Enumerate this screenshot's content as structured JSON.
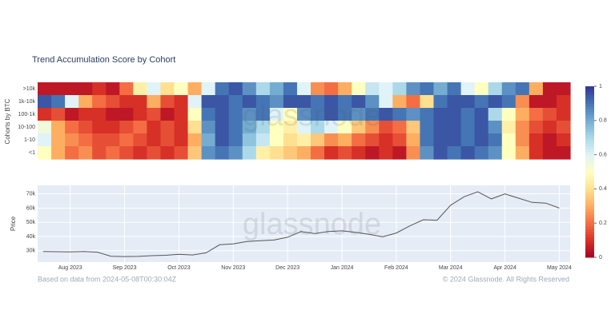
{
  "chart_data": [
    {
      "type": "heatmap",
      "title": "Trend Accumulation Score by Cohort",
      "y_label": "Cohorts by BTC",
      "watermark": "glassnode",
      "categories": [
        ">10k",
        "1k-10k",
        "100-1k",
        "10-100",
        "1-10",
        "<1"
      ],
      "values": [
        [
          0.05,
          0.05,
          0.05,
          0.05,
          0.1,
          0.05,
          0.2,
          0.45,
          0.6,
          0.4,
          0.5,
          0.3,
          0.6,
          0.9,
          0.95,
          0.85,
          0.7,
          0.8,
          0.9,
          0.6,
          0.25,
          0.2,
          0.3,
          0.5,
          0.65,
          0.6,
          0.7,
          0.85,
          0.9,
          0.8,
          0.9,
          0.6,
          0.5,
          0.7,
          0.85,
          0.9,
          0.3,
          0.05,
          0.05
        ],
        [
          0.95,
          0.9,
          0.6,
          0.3,
          0.2,
          0.15,
          0.1,
          0.1,
          0.3,
          0.15,
          0.1,
          0.6,
          0.95,
          0.95,
          0.9,
          0.95,
          0.9,
          0.85,
          0.95,
          0.95,
          0.9,
          0.95,
          0.9,
          0.95,
          0.85,
          0.6,
          0.3,
          0.2,
          0.4,
          0.9,
          0.95,
          0.95,
          0.9,
          0.95,
          0.9,
          0.25,
          0.05,
          0.05,
          0.1
        ],
        [
          0.1,
          0.15,
          0.05,
          0.1,
          0.1,
          0.05,
          0.05,
          0.1,
          0.15,
          0.05,
          0.1,
          0.5,
          0.9,
          0.95,
          0.9,
          0.85,
          0.9,
          0.6,
          0.5,
          0.85,
          0.9,
          0.95,
          0.9,
          0.85,
          0.9,
          0.95,
          0.9,
          0.85,
          0.9,
          0.95,
          0.95,
          0.9,
          0.95,
          0.7,
          0.5,
          0.3,
          0.2,
          0.15,
          0.1
        ],
        [
          0.55,
          0.3,
          0.2,
          0.15,
          0.1,
          0.1,
          0.15,
          0.2,
          0.1,
          0.15,
          0.1,
          0.4,
          0.85,
          0.95,
          0.9,
          0.8,
          0.7,
          0.5,
          0.45,
          0.6,
          0.7,
          0.6,
          0.5,
          0.35,
          0.25,
          0.15,
          0.2,
          0.35,
          0.9,
          0.95,
          0.95,
          0.9,
          0.95,
          0.85,
          0.45,
          0.25,
          0.15,
          0.1,
          0.15
        ],
        [
          0.6,
          0.3,
          0.25,
          0.2,
          0.15,
          0.15,
          0.2,
          0.15,
          0.1,
          0.15,
          0.1,
          0.3,
          0.8,
          0.95,
          0.9,
          0.75,
          0.65,
          0.5,
          0.4,
          0.45,
          0.35,
          0.25,
          0.3,
          0.2,
          0.15,
          0.1,
          0.15,
          0.3,
          0.9,
          0.95,
          0.95,
          0.9,
          0.95,
          0.9,
          0.5,
          0.25,
          0.1,
          0.05,
          0.1
        ],
        [
          0.5,
          0.3,
          0.2,
          0.25,
          0.15,
          0.2,
          0.15,
          0.1,
          0.15,
          0.1,
          0.15,
          0.35,
          0.85,
          0.9,
          0.85,
          0.7,
          0.45,
          0.4,
          0.35,
          0.3,
          0.2,
          0.1,
          0.15,
          0.1,
          0.05,
          0.1,
          0.05,
          0.25,
          0.85,
          0.95,
          0.9,
          0.95,
          0.9,
          0.85,
          0.5,
          0.3,
          0.1,
          0.05,
          0.05
        ]
      ],
      "zlim": [
        0,
        1
      ],
      "colorbar_ticks": [
        0,
        0.2,
        0.4,
        0.6,
        0.8,
        1
      ],
      "colorscale": [
        "#a50026",
        "#d73027",
        "#f46d43",
        "#fdae61",
        "#fee090",
        "#ffffbf",
        "#e0f3f8",
        "#abd9e9",
        "#74add1",
        "#4575b4",
        "#313695"
      ]
    },
    {
      "type": "line",
      "y_label": "Price",
      "watermark": "glassnode",
      "color": "#555555",
      "grid": true,
      "x": [
        6.5,
        6.75,
        7,
        7.25,
        7.5,
        7.75,
        8,
        8.25,
        8.5,
        8.75,
        9,
        9.25,
        9.5,
        9.75,
        10,
        10.25,
        10.5,
        10.75,
        11,
        11.25,
        11.5,
        11.75,
        12,
        12.25,
        12.5,
        12.75,
        13,
        13.25,
        13.5,
        13.75,
        14,
        14.25,
        14.5,
        14.75,
        15,
        15.25,
        15.5,
        15.75,
        16
      ],
      "values": [
        29500,
        29300,
        29200,
        29400,
        29000,
        26100,
        25900,
        26000,
        26500,
        26800,
        27500,
        27000,
        28500,
        34200,
        34800,
        36500,
        37000,
        37500,
        39500,
        43500,
        42000,
        43500,
        44000,
        43000,
        41500,
        39800,
        42500,
        47500,
        51800,
        51500,
        62000,
        68000,
        71500,
        66500,
        70000,
        67000,
        64000,
        63500,
        60000
      ],
      "xlim": [
        6.4,
        16.2
      ],
      "xticks": [
        {
          "value": 7,
          "label": "Aug 2023"
        },
        {
          "value": 8,
          "label": "Sep 2023"
        },
        {
          "value": 9,
          "label": "Oct 2023"
        },
        {
          "value": 10,
          "label": "Nov 2023"
        },
        {
          "value": 11,
          "label": "Dec 2023"
        },
        {
          "value": 12,
          "label": "Jan 2024"
        },
        {
          "value": 13,
          "label": "Feb 2024"
        },
        {
          "value": 14,
          "label": "Mar 2024"
        },
        {
          "value": 15,
          "label": "Apr 2024"
        },
        {
          "value": 16,
          "label": "May 2024"
        }
      ],
      "ylim": [
        22000,
        76000
      ],
      "yticks": [
        {
          "value": 30000,
          "label": "30k"
        },
        {
          "value": 40000,
          "label": "40k"
        },
        {
          "value": 50000,
          "label": "50k"
        },
        {
          "value": 60000,
          "label": "60k"
        },
        {
          "value": 70000,
          "label": "70k"
        }
      ]
    }
  ],
  "footer": {
    "left": "Based on data from 2024-05-08T00:30:04Z",
    "right": "© 2024 Glassnode. All Rights Reserved"
  }
}
